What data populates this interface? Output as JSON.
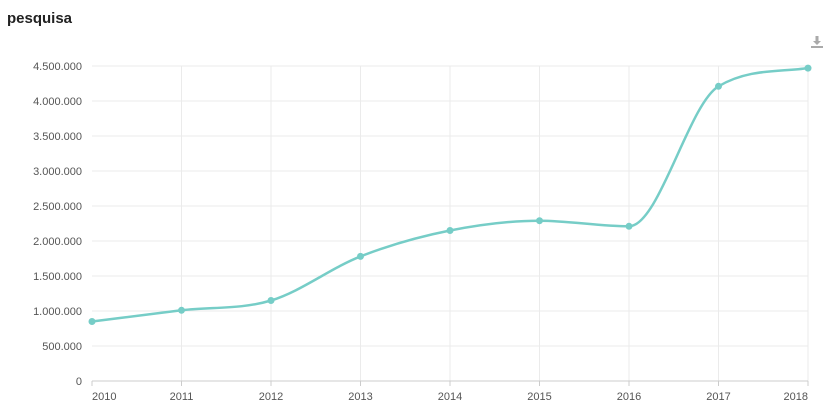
{
  "title": "pesquisa",
  "download_icon": "download-icon",
  "colors": {
    "line": "#76cdc7",
    "grid": "#ebebeb",
    "axis": "#cccccc",
    "text": "#555555"
  },
  "chart_data": {
    "type": "line",
    "title": "pesquisa",
    "xlabel": "",
    "ylabel": "",
    "x": [
      2010,
      2011,
      2012,
      2013,
      2014,
      2015,
      2016,
      2017,
      2018
    ],
    "x_tick_labels": [
      "2010",
      "2011",
      "2012",
      "2013",
      "2014",
      "2015",
      "2016",
      "2017",
      "2018"
    ],
    "ylim": [
      0,
      4500000
    ],
    "y_ticks": [
      0,
      500000,
      1000000,
      1500000,
      2000000,
      2500000,
      3000000,
      3500000,
      4000000,
      4500000
    ],
    "y_tick_labels": [
      "0",
      "500.000",
      "1.000.000",
      "1.500.000",
      "2.000.000",
      "2.500.000",
      "3.000.000",
      "3.500.000",
      "4.000.000",
      "4.500.000"
    ],
    "series": [
      {
        "values": [
          850000,
          1010000,
          1150000,
          1780000,
          2150000,
          2290000,
          2210000,
          4210000,
          4470000
        ]
      }
    ],
    "grid": true,
    "legend": "none",
    "smooth": true
  }
}
